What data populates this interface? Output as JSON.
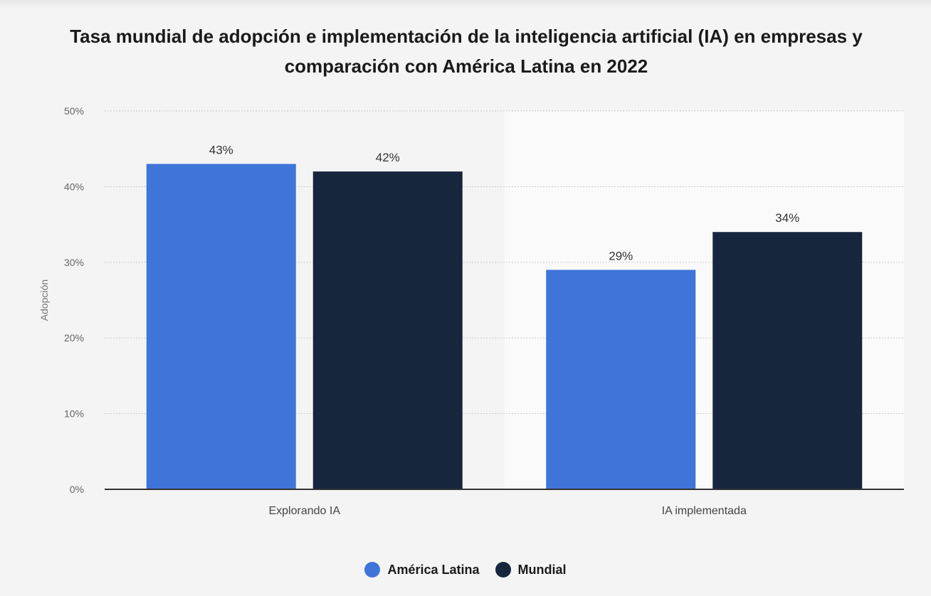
{
  "chart_data": {
    "type": "bar",
    "title": "Tasa mundial de adopción e implementación de la inteligencia artificial (IA) en empresas y comparación con América Latina en 2022",
    "categories": [
      "Explorando IA",
      "IA implementada"
    ],
    "series": [
      {
        "name": "América Latina",
        "values": [
          43,
          29
        ],
        "labels": [
          "43%",
          "29%"
        ],
        "color": "#3f74d9"
      },
      {
        "name": "Mundial",
        "values": [
          42,
          34
        ],
        "labels": [
          "42%",
          "34%"
        ],
        "color": "#17263c"
      }
    ],
    "xlabel": "",
    "ylabel": "Adopción",
    "ylim": [
      0,
      50
    ],
    "yticks": [
      "0%",
      "10%",
      "20%",
      "30%",
      "40%",
      "50%"
    ],
    "grid": true,
    "legend": "bottom-center"
  },
  "colors": {
    "background": "#f4f4f4",
    "highlight_band": "#fafafa",
    "grid": "#c8c8c8",
    "axis": "#333333"
  }
}
